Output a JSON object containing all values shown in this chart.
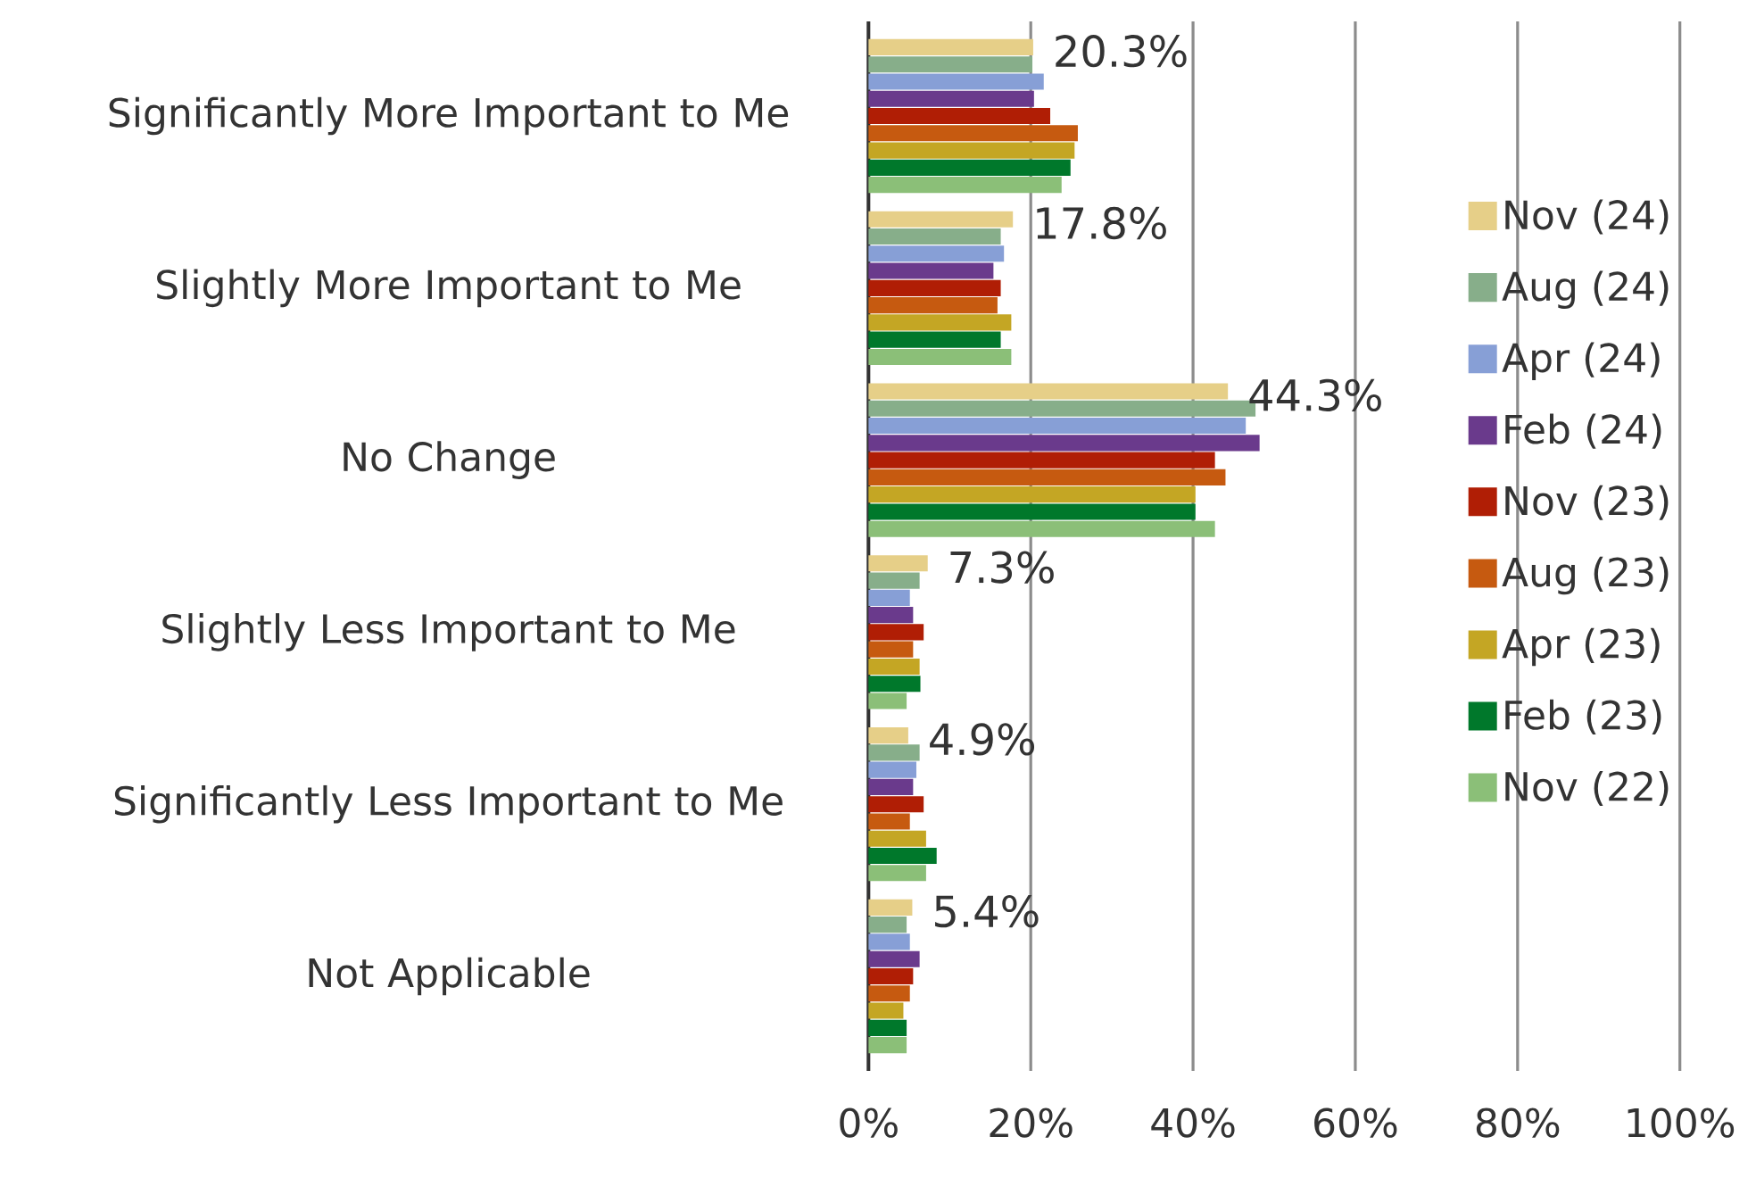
{
  "chart_data": {
    "type": "bar",
    "orientation": "horizontal",
    "categories": [
      "Significantly More Important to Me",
      "Slightly More Important to Me",
      "No Change",
      "Slightly Less Important to Me",
      "Significantly Less Important to Me",
      "Not Applicable"
    ],
    "series": [
      {
        "name": "Nov (24)",
        "color": "#e6cf88",
        "values": [
          20.3,
          17.8,
          44.3,
          7.3,
          4.9,
          5.4
        ],
        "value_labels": [
          "20.3%",
          "17.8%",
          "44.3%",
          "7.3%",
          "4.9%",
          "5.4%"
        ]
      },
      {
        "name": "Aug (24)",
        "color": "#87ae8a",
        "values": [
          20.2,
          16.3,
          47.7,
          6.3,
          6.3,
          4.7
        ]
      },
      {
        "name": "Apr (24)",
        "color": "#879fd6",
        "values": [
          21.6,
          16.7,
          46.5,
          5.1,
          5.9,
          5.1
        ]
      },
      {
        "name": "Feb (24)",
        "color": "#6a3a8c",
        "values": [
          20.4,
          15.4,
          48.2,
          5.5,
          5.5,
          6.3
        ]
      },
      {
        "name": "Nov (23)",
        "color": "#b01e05",
        "values": [
          22.4,
          16.3,
          42.7,
          6.8,
          6.8,
          5.5
        ]
      },
      {
        "name": "Aug (23)",
        "color": "#c65a10",
        "values": [
          25.8,
          15.9,
          44.0,
          5.5,
          5.1,
          5.1
        ]
      },
      {
        "name": "Apr (23)",
        "color": "#c4a624",
        "values": [
          25.4,
          17.6,
          40.3,
          6.3,
          7.1,
          4.3
        ]
      },
      {
        "name": "Feb (23)",
        "color": "#00782b",
        "values": [
          24.9,
          16.3,
          40.3,
          6.4,
          8.4,
          4.7
        ]
      },
      {
        "name": "Nov (22)",
        "color": "#8bbf78",
        "values": [
          23.8,
          17.6,
          42.7,
          4.7,
          7.1,
          4.7
        ]
      }
    ],
    "xlim": [
      0,
      100
    ],
    "xticks": [
      {
        "value": 0,
        "label": "0%"
      },
      {
        "value": 20,
        "label": "20%"
      },
      {
        "value": 40,
        "label": "40%"
      },
      {
        "value": 60,
        "label": "60%"
      },
      {
        "value": 80,
        "label": "80%"
      },
      {
        "value": 100,
        "label": "100%"
      }
    ],
    "grid": "x",
    "legend": "right"
  }
}
